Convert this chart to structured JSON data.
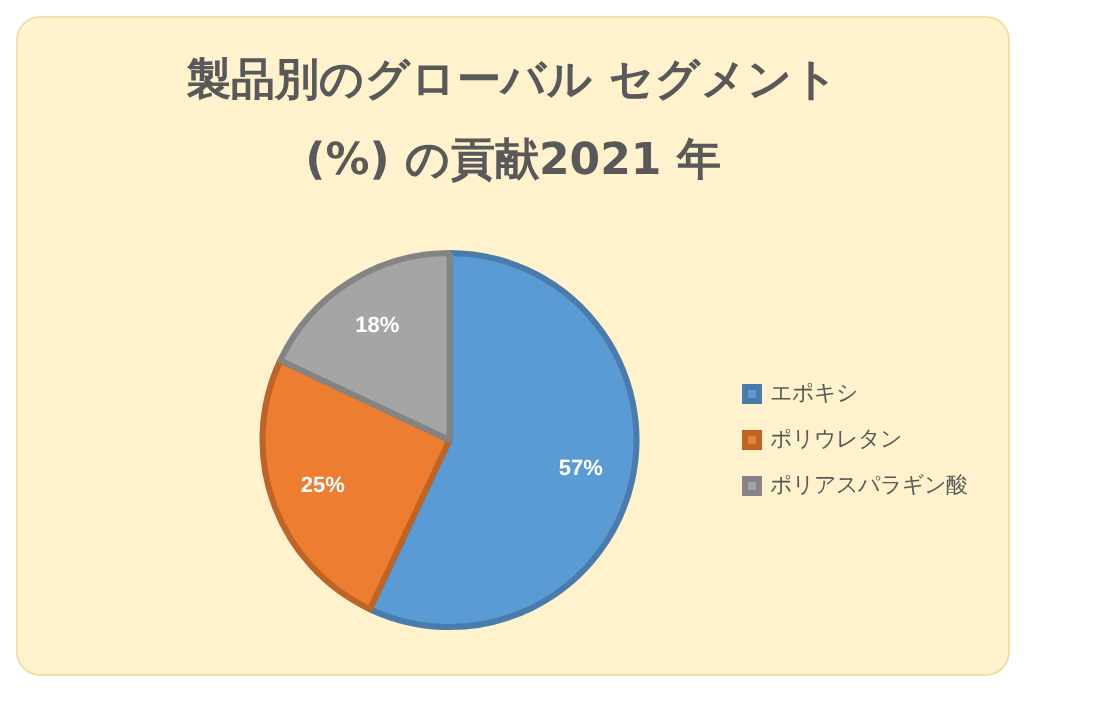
{
  "chart_data": {
    "type": "pie",
    "title": "製品別のグローバル セグメント\n(%)  の貢献2021 年",
    "categories": [
      "エポキシ",
      "ポリウレタン",
      "ポリアスパラギン酸"
    ],
    "values": [
      57,
      25,
      18
    ],
    "colors": [
      "#5b9bd5",
      "#ed7d31",
      "#a5a5a5"
    ],
    "value_labels": [
      "57%",
      "25%",
      "18%"
    ],
    "legend": "right"
  }
}
